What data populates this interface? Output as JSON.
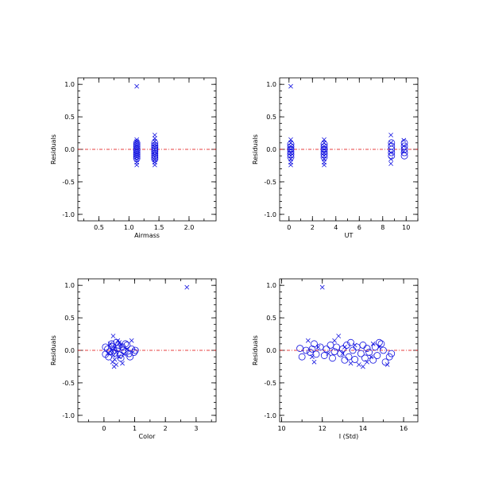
{
  "colors": {
    "points": "#1010e0",
    "zero_line": "#e00000",
    "axes": "#000000"
  },
  "chart_data": [
    {
      "type": "scatter",
      "xlabel": "Airmass",
      "ylabel": "Residuals",
      "xlim": [
        0.15,
        2.45
      ],
      "ylim": [
        -1.1,
        1.1
      ],
      "xticks": [
        0.5,
        1.0,
        1.5,
        2.0
      ],
      "xtick_labels": [
        "0.5",
        "1.0",
        "1.5",
        "2.0"
      ],
      "yticks": [
        -1.0,
        -0.5,
        0.0,
        0.5,
        1.0
      ],
      "ytick_labels": [
        "-1.0",
        "-0.5",
        "0.0",
        "0.5",
        "1.0"
      ],
      "reference_line_y": 0.0,
      "series": [
        {
          "marker": "x",
          "points": [
            [
              1.13,
              0.97
            ],
            [
              1.13,
              0.15
            ],
            [
              1.13,
              0.12
            ],
            [
              1.13,
              0.09
            ],
            [
              1.13,
              0.06
            ],
            [
              1.13,
              0.03
            ],
            [
              1.13,
              0.0
            ],
            [
              1.13,
              -0.03
            ],
            [
              1.13,
              -0.06
            ],
            [
              1.13,
              -0.09
            ],
            [
              1.13,
              -0.12
            ],
            [
              1.13,
              -0.16
            ],
            [
              1.13,
              -0.2
            ],
            [
              1.13,
              -0.24
            ],
            [
              1.43,
              0.22
            ],
            [
              1.43,
              0.17
            ],
            [
              1.43,
              0.12
            ],
            [
              1.43,
              0.08
            ],
            [
              1.43,
              0.04
            ],
            [
              1.43,
              0.0
            ],
            [
              1.43,
              -0.04
            ],
            [
              1.43,
              -0.08
            ],
            [
              1.43,
              -0.12
            ],
            [
              1.43,
              -0.16
            ],
            [
              1.43,
              -0.2
            ],
            [
              1.43,
              -0.24
            ]
          ]
        },
        {
          "marker": "o",
          "points": [
            [
              1.13,
              0.1
            ],
            [
              1.13,
              0.07
            ],
            [
              1.13,
              0.04
            ],
            [
              1.13,
              0.01
            ],
            [
              1.13,
              -0.02
            ],
            [
              1.13,
              -0.05
            ],
            [
              1.13,
              -0.08
            ],
            [
              1.13,
              -0.11
            ],
            [
              1.13,
              -0.14
            ],
            [
              1.43,
              0.1
            ],
            [
              1.43,
              0.06
            ],
            [
              1.43,
              0.03
            ],
            [
              1.43,
              0.0
            ],
            [
              1.43,
              -0.03
            ],
            [
              1.43,
              -0.06
            ],
            [
              1.43,
              -0.09
            ],
            [
              1.43,
              -0.12
            ],
            [
              1.43,
              -0.15
            ]
          ]
        }
      ]
    },
    {
      "type": "scatter",
      "xlabel": "UT",
      "ylabel": "Residuals",
      "xlim": [
        -0.8,
        11.0
      ],
      "ylim": [
        -1.1,
        1.1
      ],
      "xticks": [
        0,
        2,
        4,
        6,
        8,
        10
      ],
      "xtick_labels": [
        "0",
        "2",
        "4",
        "6",
        "8",
        "10"
      ],
      "yticks": [
        -1.0,
        -0.5,
        0.0,
        0.5,
        1.0
      ],
      "ytick_labels": [
        "-1.0",
        "-0.5",
        "0.0",
        "0.5",
        "1.0"
      ],
      "reference_line_y": 0.0,
      "series": [
        {
          "marker": "x",
          "points": [
            [
              0.15,
              0.97
            ],
            [
              0.15,
              0.15
            ],
            [
              0.15,
              0.1
            ],
            [
              0.15,
              0.05
            ],
            [
              0.15,
              0.0
            ],
            [
              0.15,
              -0.05
            ],
            [
              0.15,
              -0.1
            ],
            [
              0.15,
              -0.15
            ],
            [
              0.15,
              -0.2
            ],
            [
              0.15,
              -0.24
            ],
            [
              3.0,
              0.15
            ],
            [
              3.0,
              0.1
            ],
            [
              3.0,
              0.05
            ],
            [
              3.0,
              0.0
            ],
            [
              3.0,
              -0.05
            ],
            [
              3.0,
              -0.1
            ],
            [
              3.0,
              -0.15
            ],
            [
              3.0,
              -0.2
            ],
            [
              3.0,
              -0.24
            ],
            [
              8.7,
              0.22
            ],
            [
              8.7,
              0.1
            ],
            [
              8.7,
              -0.05
            ],
            [
              8.7,
              -0.15
            ],
            [
              8.7,
              -0.22
            ],
            [
              9.8,
              0.14
            ],
            [
              9.8,
              0.05
            ],
            [
              9.8,
              -0.03
            ]
          ]
        },
        {
          "marker": "o",
          "points": [
            [
              0.15,
              0.08
            ],
            [
              0.15,
              0.04
            ],
            [
              0.15,
              0.0
            ],
            [
              0.15,
              -0.04
            ],
            [
              0.15,
              -0.08
            ],
            [
              0.15,
              -0.12
            ],
            [
              3.0,
              0.08
            ],
            [
              3.0,
              0.04
            ],
            [
              3.0,
              0.0
            ],
            [
              3.0,
              -0.04
            ],
            [
              3.0,
              -0.08
            ],
            [
              3.0,
              -0.12
            ],
            [
              8.75,
              0.1
            ],
            [
              8.75,
              0.05
            ],
            [
              8.75,
              0.0
            ],
            [
              8.75,
              -0.05
            ],
            [
              8.75,
              -0.1
            ],
            [
              9.85,
              0.1
            ],
            [
              9.85,
              0.05
            ],
            [
              9.85,
              0.0
            ],
            [
              9.85,
              -0.05
            ],
            [
              9.85,
              -0.1
            ]
          ]
        }
      ]
    },
    {
      "type": "scatter",
      "xlabel": "Color",
      "ylabel": "Residuals",
      "xlim": [
        -0.85,
        3.65
      ],
      "ylim": [
        -1.1,
        1.1
      ],
      "xticks": [
        0,
        1,
        2,
        3
      ],
      "xtick_labels": [
        "0",
        "1",
        "2",
        "3"
      ],
      "yticks": [
        -1.0,
        -0.5,
        0.0,
        0.5,
        1.0
      ],
      "ytick_labels": [
        "-1.0",
        "-0.5",
        "0.0",
        "0.5",
        "1.0"
      ],
      "reference_line_y": 0.0,
      "series": [
        {
          "marker": "x",
          "points": [
            [
              2.7,
              0.97
            ],
            [
              0.3,
              0.22
            ],
            [
              0.45,
              0.15
            ],
            [
              0.2,
              0.1
            ],
            [
              0.55,
              0.08
            ],
            [
              0.35,
              0.05
            ],
            [
              0.25,
              0.0
            ],
            [
              0.4,
              -0.03
            ],
            [
              0.3,
              -0.08
            ],
            [
              0.5,
              -0.1
            ],
            [
              0.35,
              -0.14
            ],
            [
              0.28,
              -0.18
            ],
            [
              0.4,
              -0.22
            ],
            [
              0.33,
              -0.25
            ],
            [
              0.6,
              -0.2
            ],
            [
              0.9,
              0.15
            ],
            [
              0.75,
              0.02
            ],
            [
              0.65,
              -0.06
            ],
            [
              0.15,
              -0.05
            ],
            [
              0.5,
              0.12
            ]
          ]
        },
        {
          "marker": "o",
          "points": [
            [
              0.05,
              0.05
            ],
            [
              0.12,
              0.02
            ],
            [
              0.2,
              -0.02
            ],
            [
              0.28,
              0.06
            ],
            [
              0.36,
              -0.04
            ],
            [
              0.45,
              0.03
            ],
            [
              0.52,
              -0.07
            ],
            [
              0.6,
              0.05
            ],
            [
              0.68,
              -0.02
            ],
            [
              0.75,
              0.08
            ],
            [
              0.82,
              -0.05
            ],
            [
              0.9,
              0.02
            ],
            [
              0.98,
              -0.03
            ],
            [
              1.02,
              0.0
            ],
            [
              0.15,
              -0.1
            ],
            [
              0.25,
              0.1
            ],
            [
              0.4,
              0.12
            ],
            [
              0.55,
              -0.12
            ],
            [
              0.7,
              0.1
            ],
            [
              0.85,
              -0.1
            ],
            [
              0.05,
              -0.06
            ],
            [
              0.32,
              0.0
            ],
            [
              0.62,
              0.0
            ],
            [
              0.48,
              0.08
            ]
          ]
        }
      ]
    },
    {
      "type": "scatter",
      "xlabel": "I (Std)",
      "ylabel": "Residuals",
      "xlim": [
        9.9,
        16.7
      ],
      "ylim": [
        -1.1,
        1.1
      ],
      "xticks": [
        10,
        12,
        14,
        16
      ],
      "xtick_labels": [
        "10",
        "12",
        "14",
        "16"
      ],
      "yticks": [
        -1.0,
        -0.5,
        0.0,
        0.5,
        1.0
      ],
      "ytick_labels": [
        "-1.0",
        "-0.5",
        "0.0",
        "0.5",
        "1.0"
      ],
      "reference_line_y": 0.0,
      "series": [
        {
          "marker": "x",
          "points": [
            [
              12.0,
              0.97
            ],
            [
              11.3,
              0.15
            ],
            [
              11.5,
              -0.1
            ],
            [
              11.6,
              -0.18
            ],
            [
              12.6,
              0.15
            ],
            [
              12.8,
              0.22
            ],
            [
              13.1,
              0.05
            ],
            [
              13.4,
              -0.2
            ],
            [
              13.8,
              -0.22
            ],
            [
              14.0,
              -0.25
            ],
            [
              14.2,
              -0.18
            ],
            [
              14.5,
              0.1
            ],
            [
              14.8,
              0.05
            ],
            [
              15.2,
              -0.22
            ],
            [
              11.8,
              0.05
            ],
            [
              13.0,
              -0.05
            ],
            [
              13.6,
              0.08
            ],
            [
              14.4,
              -0.1
            ],
            [
              12.3,
              -0.05
            ]
          ]
        },
        {
          "marker": "o",
          "points": [
            [
              10.9,
              0.03
            ],
            [
              11.0,
              -0.1
            ],
            [
              11.2,
              0.0
            ],
            [
              11.4,
              -0.03
            ],
            [
              11.6,
              0.1
            ],
            [
              11.7,
              -0.06
            ],
            [
              11.9,
              0.05
            ],
            [
              12.1,
              -0.08
            ],
            [
              12.2,
              0.02
            ],
            [
              12.4,
              0.08
            ],
            [
              12.5,
              -0.12
            ],
            [
              12.7,
              0.05
            ],
            [
              12.9,
              -0.05
            ],
            [
              13.0,
              0.02
            ],
            [
              13.1,
              -0.15
            ],
            [
              13.2,
              0.08
            ],
            [
              13.3,
              -0.1
            ],
            [
              13.5,
              0.0
            ],
            [
              13.6,
              -0.14
            ],
            [
              13.7,
              0.05
            ],
            [
              13.9,
              -0.05
            ],
            [
              14.0,
              0.08
            ],
            [
              14.1,
              -0.12
            ],
            [
              14.2,
              0.03
            ],
            [
              14.3,
              -0.03
            ],
            [
              14.5,
              -0.15
            ],
            [
              14.6,
              0.05
            ],
            [
              14.7,
              -0.08
            ],
            [
              14.9,
              0.1
            ],
            [
              15.0,
              0.0
            ],
            [
              15.1,
              -0.18
            ],
            [
              15.3,
              -0.1
            ],
            [
              15.4,
              -0.05
            ],
            [
              13.4,
              0.12
            ],
            [
              14.8,
              0.12
            ],
            [
              12.6,
              -0.02
            ],
            [
              11.5,
              0.02
            ]
          ]
        }
      ]
    }
  ]
}
